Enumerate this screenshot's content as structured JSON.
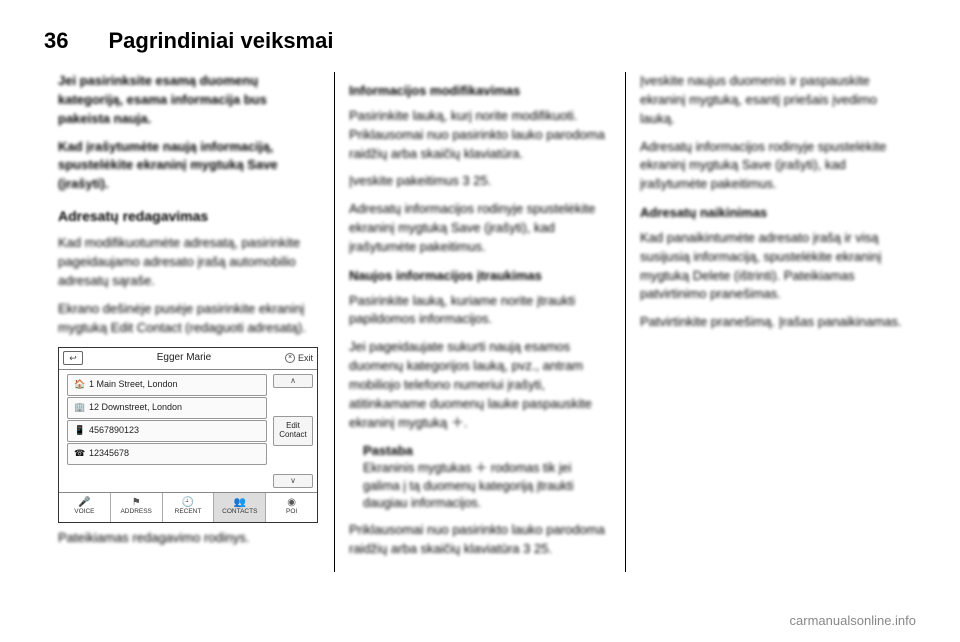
{
  "page": {
    "number": "36",
    "title": "Pagrindiniai veiksmai"
  },
  "col1": {
    "p1": "Jei pasirinksite esamą duomenų kategoriją, esama informacija bus pakeista nauja.",
    "p2": "Kad įrašytumėte naują informaciją, spustelėkite ekraninį mygtuką Save (įrašyti).",
    "h3": "Adresatų redagavimas",
    "p3": "Kad modifikuotumėte adresatą, pasirinkite pageidaujamo adresato įrašą automobilio adresatų sąraše.",
    "p4": "Ekrano dešinėje pusėje pasirinkite ekraninį mygtuką Edit Contact (redaguoti adresatą).",
    "caption": "Pateikiamas redagavimo rodinys."
  },
  "device": {
    "title": "Egger Marie",
    "exit": "Exit",
    "rows": [
      {
        "icon": "🏠",
        "label": "1 Main Street, London"
      },
      {
        "icon": "🏢",
        "label": "12 Downstreet, London"
      },
      {
        "icon": "📱",
        "label": "4567890123"
      },
      {
        "icon": "☎",
        "label": "12345678"
      }
    ],
    "edit": "Edit Contact",
    "tabs": [
      {
        "icon": "🎤",
        "label": "VOICE"
      },
      {
        "icon": "⚑",
        "label": "ADDRESS"
      },
      {
        "icon": "🕘",
        "label": "RECENT"
      },
      {
        "icon": "👥",
        "label": "CONTACTS"
      },
      {
        "icon": "◉",
        "label": "POI"
      }
    ],
    "active_tab": 3
  },
  "col2": {
    "h4a": "Informacijos modifikavimas",
    "p1": "Pasirinkite lauką, kurį norite modifikuoti. Priklausomai nuo pasirinkto lauko parodoma raidžių arba skaičių klaviatūra.",
    "p2": "Įveskite pakeitimus 3 25.",
    "p3": "Adresatų informacijos rodinyje spustelėkite ekraninį mygtuką Save (įrašyti), kad įrašytumėte pakeitimus.",
    "h4b": "Naujos informacijos įtraukimas",
    "p4": "Pasirinkite lauką, kuriame norite įtraukti papildomos informacijos.",
    "p5": "Jei pageidaujate sukurti naują esamos duomenų kategorijos lauką, pvz., antram mobiliojo telefono numeriui įrašyti, atitinkamame duomenų lauke paspauskite ekraninį mygtuką ＋.",
    "note_label": "Pastaba",
    "note_txt": "Ekraninis mygtukas ＋ rodomas tik jei galima į tą duomenų kategoriją įtraukti daugiau informacijos.",
    "p6": "Priklausomai nuo pasirinkto lauko parodoma raidžių arba skaičių klaviatūra 3 25."
  },
  "col3": {
    "p1": "Įveskite naujus duomenis ir paspauskite ekraninį mygtuką, esantį priešais įvedimo lauką.",
    "p2": "Adresatų informacijos rodinyje spustelėkite ekraninį mygtuką Save (įrašyti), kad įrašytumėte pakeitimus.",
    "h4": "Adresatų naikinimas",
    "p3": "Kad panaikintumėte adresato įrašą ir visą susijusią informaciją, spustelėkite ekraninį mygtuką Delete (ištrinti). Pateikiamas patvirtinimo pranešimas.",
    "p4": "Patvirtinkite pranešimą. Įrašas panaikinamas."
  },
  "footer": {
    "url": "carmanualsonline.info"
  }
}
